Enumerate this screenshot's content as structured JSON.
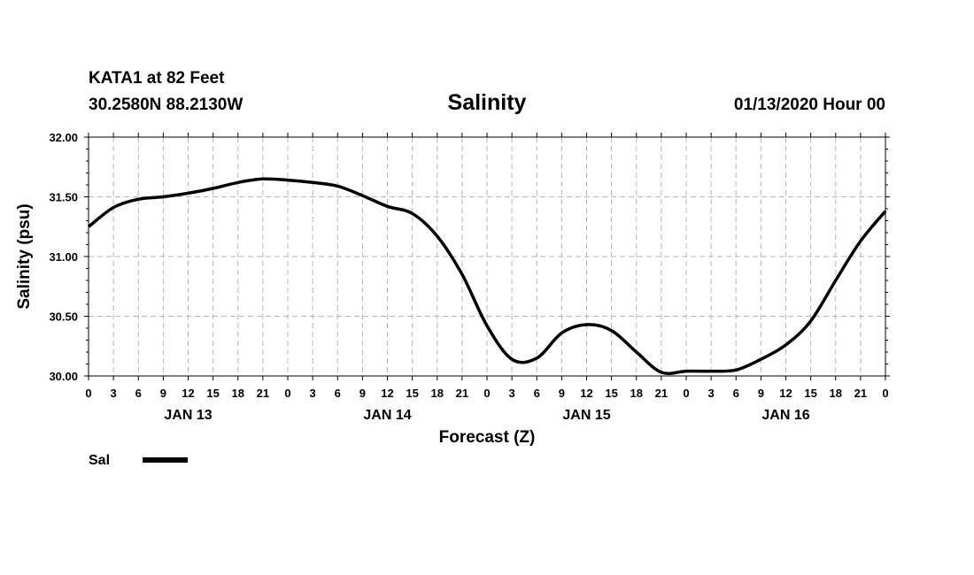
{
  "header": {
    "station": "KATA1 at 82 Feet",
    "coords": "30.2580N 88.2130W",
    "run": "01/13/2020 Hour 00"
  },
  "chart_data": {
    "type": "line",
    "title": "Salinity",
    "xlabel": "Forecast (Z)",
    "ylabel": "Salinity (psu)",
    "xlim": [
      0,
      96
    ],
    "ylim": [
      30.0,
      32.0
    ],
    "y_ticks": [
      "30.00",
      "30.50",
      "31.00",
      "31.50",
      "32.00"
    ],
    "x_tick_labels": [
      "0",
      "3",
      "6",
      "9",
      "12",
      "15",
      "18",
      "21",
      "0",
      "3",
      "6",
      "9",
      "12",
      "15",
      "18",
      "21",
      "0",
      "3",
      "6",
      "9",
      "12",
      "15",
      "18",
      "21",
      "0",
      "3",
      "6",
      "9",
      "12",
      "15",
      "18",
      "21",
      "0"
    ],
    "x_tick_step_hours": 3,
    "day_labels": [
      {
        "label": "JAN 13",
        "hour": 12
      },
      {
        "label": "JAN 14",
        "hour": 36
      },
      {
        "label": "JAN 15",
        "hour": 60
      },
      {
        "label": "JAN 16",
        "hour": 84
      }
    ],
    "grid": true,
    "legend_position": "bottom-left",
    "series": [
      {
        "name": "Sal",
        "color": "#000000",
        "x": [
          0,
          3,
          6,
          9,
          12,
          15,
          18,
          21,
          24,
          27,
          30,
          33,
          36,
          39,
          42,
          45,
          48,
          51,
          54,
          57,
          60,
          63,
          66,
          69,
          72,
          75,
          78,
          81,
          84,
          87,
          90,
          93,
          96
        ],
        "values": [
          31.25,
          31.41,
          31.48,
          31.5,
          31.53,
          31.57,
          31.62,
          31.65,
          31.64,
          31.62,
          31.59,
          31.51,
          31.42,
          31.36,
          31.17,
          30.85,
          30.42,
          30.14,
          30.15,
          30.36,
          30.43,
          30.38,
          30.2,
          30.03,
          30.04,
          30.04,
          30.05,
          30.14,
          30.26,
          30.46,
          30.8,
          31.13,
          31.38
        ]
      }
    ]
  }
}
